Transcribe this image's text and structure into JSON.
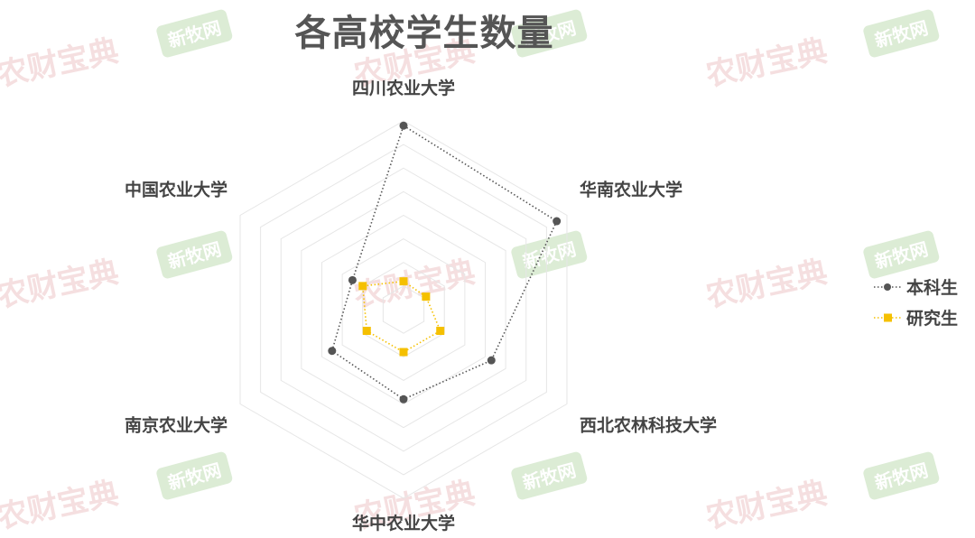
{
  "watermarks": {
    "text_a": "农财宝典",
    "text_b": "新牧网"
  },
  "chart_data": {
    "type": "radar",
    "title": "各高校学生数量",
    "categories": [
      "四川农业大学",
      "华南农业大学",
      "西北农林科技大学",
      "华中农业大学",
      "南京农业大学",
      "中国农业大学"
    ],
    "rings": 8,
    "range": [
      0,
      8
    ],
    "grid": true,
    "legend_position": "right",
    "series": [
      {
        "name": "本科生",
        "values": [
          7.8,
          7.5,
          4.3,
          3.8,
          3.5,
          2.5
        ],
        "color": "#555555",
        "marker": "circle"
      },
      {
        "name": "研究生",
        "values": [
          1.2,
          1.1,
          1.8,
          1.8,
          1.8,
          2.0
        ],
        "color": "#f5c000",
        "marker": "square"
      }
    ]
  }
}
